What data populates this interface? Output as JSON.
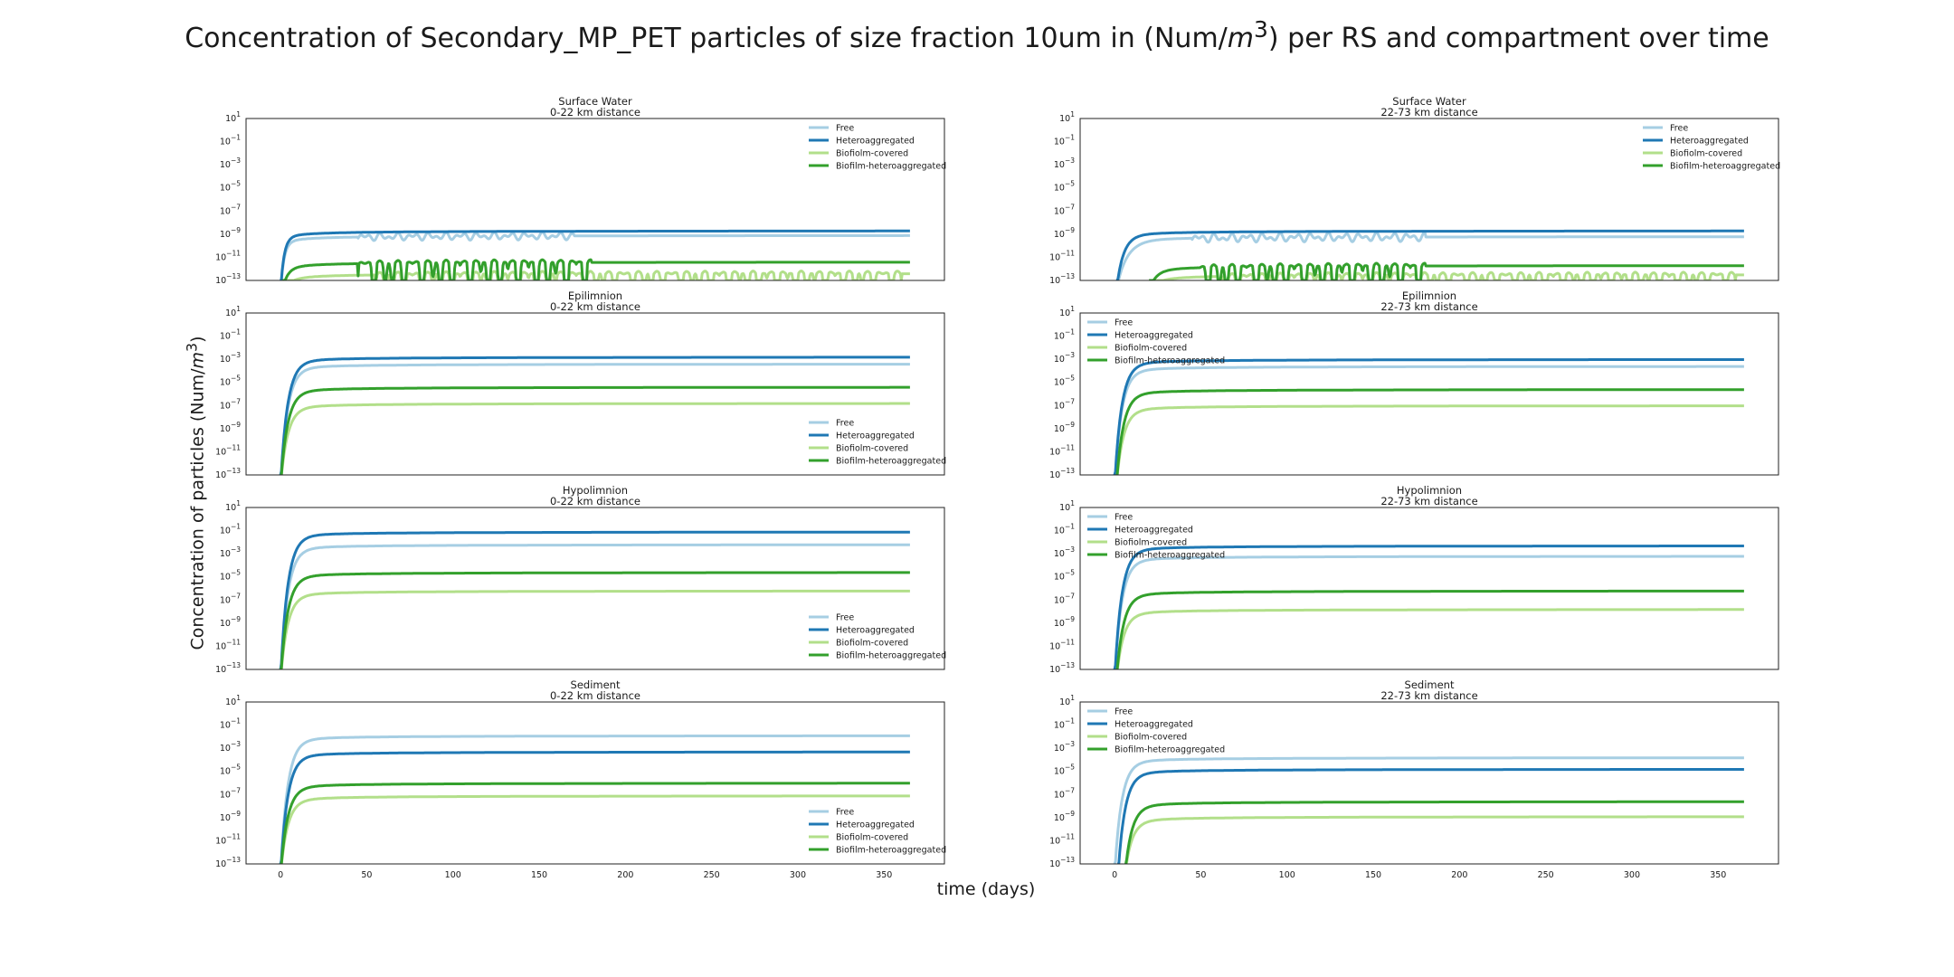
{
  "title_prefix": "Concentration of Secondary_MP_PET particles of size fraction 10um in (Num/",
  "title_unit": "m",
  "title_exp": "3",
  "title_suffix": ") per RS and compartment over time",
  "ylabel_prefix": "Concentration of particles (Num/",
  "ylabel_unit": "m",
  "ylabel_exp": "3",
  "ylabel_suffix": ")",
  "xlabel": "time (days)",
  "colors": {
    "Free": "#a6cee3",
    "Heteroaggregated": "#1f78b4",
    "Biofiolm-covered": "#b2df8a",
    "Biofilm-heteroaggregated": "#33a02c"
  },
  "chart_data": [
    {
      "type": "line",
      "log_y": true,
      "compartment": "Surface Water",
      "distance": "0-22 km distance",
      "xlim": [
        -20,
        385
      ],
      "ylim_exp": [
        -13,
        1
      ],
      "xticks": [
        0,
        50,
        100,
        150,
        200,
        250,
        300,
        350
      ],
      "yticks_exp": [
        1,
        -1,
        -3,
        -5,
        -7,
        -9,
        -11,
        -13
      ],
      "legend_loc": "upper right",
      "show_xticks": false,
      "series": [
        {
          "name": "Free",
          "start": 0,
          "final": -9.1,
          "k": 2.0,
          "noise": {
            "from": 45,
            "to": 170,
            "amp": 0.35
          }
        },
        {
          "name": "Heteroaggregated",
          "start": 0,
          "final": -8.7,
          "k": 2.0
        },
        {
          "name": "Biofiolm-covered",
          "start": 1,
          "final": -12.4,
          "k": 5,
          "noise": {
            "from": 55,
            "to": 360,
            "amp": 1.2,
            "dips": true
          }
        },
        {
          "name": "Biofilm-heteroaggregated",
          "start": 1,
          "final": -11.4,
          "k": 3,
          "noise": {
            "from": 45,
            "to": 180,
            "amp": 1.5,
            "dips": true
          }
        }
      ]
    },
    {
      "type": "line",
      "log_y": true,
      "compartment": "Surface Water",
      "distance": "22-73 km distance",
      "xlim": [
        -20,
        385
      ],
      "ylim_exp": [
        -13,
        1
      ],
      "xticks": [
        0,
        50,
        100,
        150,
        200,
        250,
        300,
        350
      ],
      "yticks_exp": [
        1,
        -1,
        -3,
        -5,
        -7,
        -9,
        -11,
        -13
      ],
      "legend_loc": "upper right",
      "show_xticks": false,
      "series": [
        {
          "name": "Free",
          "start": 1,
          "final": -9.2,
          "k": 6,
          "noise": {
            "from": 45,
            "to": 180,
            "amp": 0.4
          }
        },
        {
          "name": "Heteroaggregated",
          "start": 1,
          "final": -8.7,
          "k": 4
        },
        {
          "name": "Biofiolm-covered",
          "start": 20,
          "final": -12.5,
          "k": 5,
          "noise": {
            "from": 60,
            "to": 360,
            "amp": 1.1,
            "dips": true
          }
        },
        {
          "name": "Biofilm-heteroaggregated",
          "start": 20,
          "final": -11.7,
          "k": 4,
          "noise": {
            "from": 50,
            "to": 180,
            "amp": 1.5,
            "dips": true
          }
        }
      ]
    },
    {
      "type": "line",
      "log_y": true,
      "compartment": "Epilimnion",
      "distance": "0-22 km distance",
      "xlim": [
        -20,
        385
      ],
      "ylim_exp": [
        -13,
        1
      ],
      "xticks": [
        0,
        50,
        100,
        150,
        200,
        250,
        300,
        350
      ],
      "yticks_exp": [
        1,
        -1,
        -3,
        -5,
        -7,
        -9,
        -11,
        -13
      ],
      "legend_loc": "lower right",
      "show_xticks": false,
      "series": [
        {
          "name": "Free",
          "start": 0,
          "final": -3.4,
          "k": 4
        },
        {
          "name": "Heteroaggregated",
          "start": 0,
          "final": -2.8,
          "k": 4
        },
        {
          "name": "Biofiolm-covered",
          "start": 0,
          "final": -6.8,
          "k": 4
        },
        {
          "name": "Biofilm-heteroaggregated",
          "start": 0,
          "final": -5.4,
          "k": 4
        }
      ]
    },
    {
      "type": "line",
      "log_y": true,
      "compartment": "Epilimnion",
      "distance": "22-73 km distance",
      "xlim": [
        -20,
        385
      ],
      "ylim_exp": [
        -13,
        1
      ],
      "xticks": [
        0,
        50,
        100,
        150,
        200,
        250,
        300,
        350
      ],
      "yticks_exp": [
        1,
        -1,
        -3,
        -5,
        -7,
        -9,
        -11,
        -13
      ],
      "legend_loc": "upper left",
      "show_xticks": false,
      "series": [
        {
          "name": "Free",
          "start": 0,
          "final": -3.6,
          "k": 4
        },
        {
          "name": "Heteroaggregated",
          "start": 0,
          "final": -3.0,
          "k": 4
        },
        {
          "name": "Biofiolm-covered",
          "start": 1,
          "final": -7.0,
          "k": 4
        },
        {
          "name": "Biofilm-heteroaggregated",
          "start": 1,
          "final": -5.6,
          "k": 4
        }
      ]
    },
    {
      "type": "line",
      "log_y": true,
      "compartment": "Hypolimnion",
      "distance": "0-22 km distance",
      "xlim": [
        -20,
        385
      ],
      "ylim_exp": [
        -13,
        1
      ],
      "xticks": [
        0,
        50,
        100,
        150,
        200,
        250,
        300,
        350
      ],
      "yticks_exp": [
        1,
        -1,
        -3,
        -5,
        -7,
        -9,
        -11,
        -13
      ],
      "legend_loc": "lower right",
      "show_xticks": false,
      "series": [
        {
          "name": "Free",
          "start": 0,
          "final": -2.2,
          "k": 4
        },
        {
          "name": "Heteroaggregated",
          "start": 0,
          "final": -1.1,
          "k": 4
        },
        {
          "name": "Biofiolm-covered",
          "start": 0,
          "final": -6.2,
          "k": 4
        },
        {
          "name": "Biofilm-heteroaggregated",
          "start": 0,
          "final": -4.6,
          "k": 4
        }
      ]
    },
    {
      "type": "line",
      "log_y": true,
      "compartment": "Hypolimnion",
      "distance": "22-73 km distance",
      "xlim": [
        -20,
        385
      ],
      "ylim_exp": [
        -13,
        1
      ],
      "xticks": [
        0,
        50,
        100,
        150,
        200,
        250,
        300,
        350
      ],
      "yticks_exp": [
        1,
        -1,
        -3,
        -5,
        -7,
        -9,
        -11,
        -13
      ],
      "legend_loc": "upper left",
      "show_xticks": false,
      "series": [
        {
          "name": "Free",
          "start": 0,
          "final": -3.2,
          "k": 4
        },
        {
          "name": "Heteroaggregated",
          "start": 0,
          "final": -2.3,
          "k": 4
        },
        {
          "name": "Biofiolm-covered",
          "start": 1,
          "final": -7.8,
          "k": 4
        },
        {
          "name": "Biofilm-heteroaggregated",
          "start": 1,
          "final": -6.2,
          "k": 4
        }
      ]
    },
    {
      "type": "line",
      "log_y": true,
      "compartment": "Sediment",
      "distance": "0-22 km distance",
      "xlim": [
        -20,
        385
      ],
      "ylim_exp": [
        -13,
        1
      ],
      "xticks": [
        0,
        50,
        100,
        150,
        200,
        250,
        300,
        350
      ],
      "yticks_exp": [
        1,
        -1,
        -3,
        -5,
        -7,
        -9,
        -11,
        -13
      ],
      "legend_loc": "lower right",
      "show_xticks": true,
      "series": [
        {
          "name": "Free",
          "start": 0,
          "final": -1.9,
          "k": 4
        },
        {
          "name": "Heteroaggregated",
          "start": 0,
          "final": -3.3,
          "k": 4
        },
        {
          "name": "Biofiolm-covered",
          "start": 0,
          "final": -7.1,
          "k": 4
        },
        {
          "name": "Biofilm-heteroaggregated",
          "start": 0,
          "final": -6.0,
          "k": 4
        }
      ]
    },
    {
      "type": "line",
      "log_y": true,
      "compartment": "Sediment",
      "distance": "22-73 km distance",
      "xlim": [
        -20,
        385
      ],
      "ylim_exp": [
        -13,
        1
      ],
      "xticks": [
        0,
        50,
        100,
        150,
        200,
        250,
        300,
        350
      ],
      "yticks_exp": [
        1,
        -1,
        -3,
        -5,
        -7,
        -9,
        -11,
        -13
      ],
      "legend_loc": "upper left",
      "show_xticks": true,
      "series": [
        {
          "name": "Free",
          "start": 0,
          "final": -3.8,
          "k": 4
        },
        {
          "name": "Heteroaggregated",
          "start": 2,
          "final": -4.8,
          "k": 4
        },
        {
          "name": "Biofiolm-covered",
          "start": 6,
          "final": -8.9,
          "k": 4
        },
        {
          "name": "Biofilm-heteroaggregated",
          "start": 6,
          "final": -7.6,
          "k": 4
        }
      ]
    }
  ]
}
